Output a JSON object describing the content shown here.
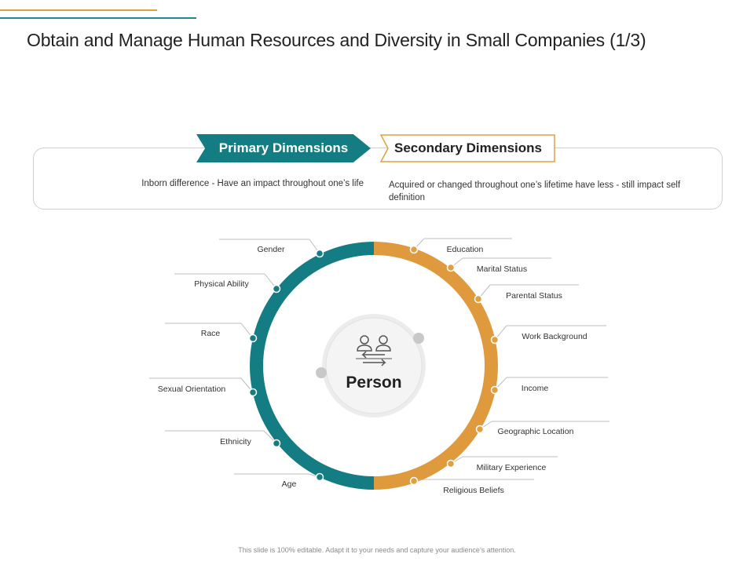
{
  "header": {
    "title": "Obtain and Manage Human Resources and Diversity in Small Companies (1/3)"
  },
  "dimensions": {
    "primary": {
      "label": "Primary Dimensions",
      "description": "Inborn difference - Have an impact throughout one’s life",
      "color": "#147d83"
    },
    "secondary": {
      "label": "Secondary Dimensions",
      "description": "Acquired or changed throughout one’s lifetime have less - still impact self definition",
      "color": "#e0a040"
    }
  },
  "center": {
    "label": "Person",
    "icon": "people-exchange-icon"
  },
  "primary_items": [
    "Gender",
    "Physical Ability",
    "Race",
    "Sexual Orientation",
    "Ethnicity",
    "Age"
  ],
  "secondary_items": [
    "Education",
    "Marital Status",
    "Parental Status",
    "Work Background",
    "Income",
    "Geographic Location",
    "Military Experience",
    "Religious Beliefs"
  ],
  "footer": {
    "text": "This slide is 100% editable. Adapt it to your needs and capture your audience’s attention."
  }
}
